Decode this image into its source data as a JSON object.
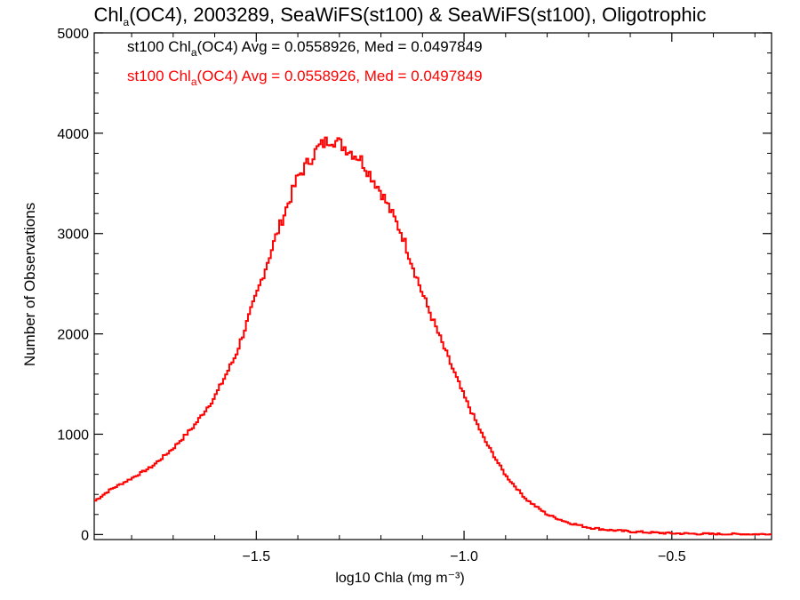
{
  "chart_data": {
    "type": "line",
    "title": {
      "prefix": "Chl",
      "subscript": "a",
      "rest": "(OC4), 2003289, SeaWiFS(st100) & SeaWiFS(st100), Oligotrophic"
    },
    "xlabel": "log10 Chla (mg m⁻³)",
    "ylabel": "Number of Observations",
    "xlim": [
      -1.89,
      -0.26
    ],
    "ylim": [
      -50,
      5000
    ],
    "xticks": [
      -1.5,
      -1.0,
      -0.5
    ],
    "xtick_labels": [
      "−1.5",
      "−1.0",
      "−0.5"
    ],
    "yticks": [
      0,
      1000,
      2000,
      3000,
      4000,
      5000
    ],
    "ytick_labels": [
      "0",
      "1000",
      "2000",
      "3000",
      "4000",
      "5000"
    ],
    "legend": [
      {
        "prefix": "st100 Chl",
        "subscript": "a",
        "rest": "(OC4) Avg = 0.0558926, Med = 0.0497849",
        "color": "#000000"
      },
      {
        "prefix": "st100 Chl",
        "subscript": "a",
        "rest": "(OC4) Avg = 0.0558926, Med = 0.0497849",
        "color": "#ff0000"
      }
    ],
    "series": [
      {
        "color": "#ff0000",
        "step": true,
        "x": [
          -1.89,
          -1.85,
          -1.8,
          -1.75,
          -1.7,
          -1.65,
          -1.6,
          -1.55,
          -1.5,
          -1.45,
          -1.4,
          -1.35,
          -1.32,
          -1.3,
          -1.25,
          -1.2,
          -1.15,
          -1.1,
          -1.05,
          -1.0,
          -0.95,
          -0.9,
          -0.85,
          -0.8,
          -0.75,
          -0.7,
          -0.65,
          -0.6,
          -0.55,
          -0.5,
          -0.45,
          -0.4,
          -0.35,
          -0.3,
          -0.26
        ],
        "y": [
          330,
          450,
          560,
          680,
          860,
          1080,
          1370,
          1780,
          2380,
          3000,
          3560,
          3860,
          3950,
          3900,
          3750,
          3420,
          3000,
          2400,
          1880,
          1380,
          940,
          590,
          350,
          200,
          120,
          70,
          45,
          30,
          20,
          12,
          8,
          5,
          4,
          3,
          3
        ]
      }
    ]
  }
}
